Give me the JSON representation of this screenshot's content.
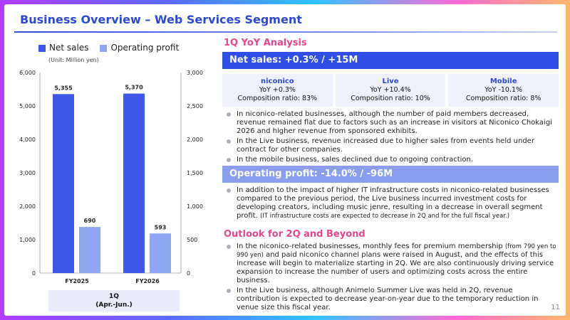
{
  "slide": {
    "title": "Business Overview – Web Services Segment",
    "page_number": "11"
  },
  "colors": {
    "net_sales": "#3d57e8",
    "operating_profit": "#8fa6f2",
    "accent_pink": "#e8468a",
    "header_blue": "#2f4ee6",
    "header_light": "#8a9ef0"
  },
  "chart_data": {
    "type": "bar",
    "legend": [
      "Net sales",
      "Operating profit"
    ],
    "unit": "(Unit: Million yen)",
    "categories": [
      "FY2025",
      "FY2026"
    ],
    "period_label_1": "1Q",
    "period_label_2": "(Apr.-Jun.)",
    "series": [
      {
        "name": "Net sales",
        "axis": "left",
        "values": [
          5355,
          5370
        ],
        "labels": [
          "5,355",
          "5,370"
        ]
      },
      {
        "name": "Operating profit",
        "axis": "right",
        "values": [
          690,
          593
        ],
        "labels": [
          "690",
          "593"
        ]
      }
    ],
    "left_axis": {
      "min": 0,
      "max": 6000,
      "ticks": [
        "0",
        "1,000",
        "2,000",
        "3,000",
        "4,000",
        "5,000",
        "6,000"
      ]
    },
    "right_axis": {
      "min": 0,
      "max": 3000,
      "ticks": [
        "0",
        "500",
        "1,000",
        "1,500",
        "2,000",
        "2,500",
        "3,000"
      ]
    }
  },
  "analysis": {
    "heading": "1Q YoY Analysis",
    "net_sales_header": "Net sales: +0.3% / +15M",
    "segments": [
      {
        "name": "niconico",
        "yoy": "YoY +0.3%",
        "ratio": "Composition ratio: 83%"
      },
      {
        "name": "Live",
        "yoy": "YoY +10.4%",
        "ratio": "Composition ratio: 10%"
      },
      {
        "name": "Mobile",
        "yoy": "YoY -10.1%",
        "ratio": "Composition ratio: 8%"
      }
    ],
    "net_sales_bullets": [
      "In niconico-related businesses, although the number of paid members decreased, revenue remained flat due to factors such as an increase in visitors at Niconico Chokaigi 2026 and higher revenue from sponsored exhibits.",
      "In the Live business, revenue increased due to higher sales from events held under contract for other companies.",
      "In the mobile business, sales declined due to ongoing contraction."
    ],
    "op_header": "Operating profit: -14.0% / -96M",
    "op_bullet_main": "In addition to the impact of higher IT infrastructure costs in niconico-related businesses compared to the previous period, the Live business incurred investment costs for developing creators, including music jenre, resulting in a decrease in overall segment profit. ",
    "op_bullet_note": "(IT infrastructure costs are expected to decrease in 2Q and for the full fiscal year.)"
  },
  "outlook": {
    "heading": "Outlook for 2Q and Beyond",
    "b1_part1": "In the niconico-related businesses, monthly fees for premium membership ",
    "b1_note": "(from 790 yen to 990 yen)",
    "b1_part2": " and paid niconico channel plans were raised in August, and the effects of this increase will begin to materialize starting in 2Q. We are also continuously driving service expansion to increase the number of users and optimizing costs across the entire business.",
    "b2": "In the Live business, although Animelo Summer Live was held in 2Q, revenue contribution is expected to decrease year-on-year due to the temporary reduction in venue size this fiscal year."
  }
}
